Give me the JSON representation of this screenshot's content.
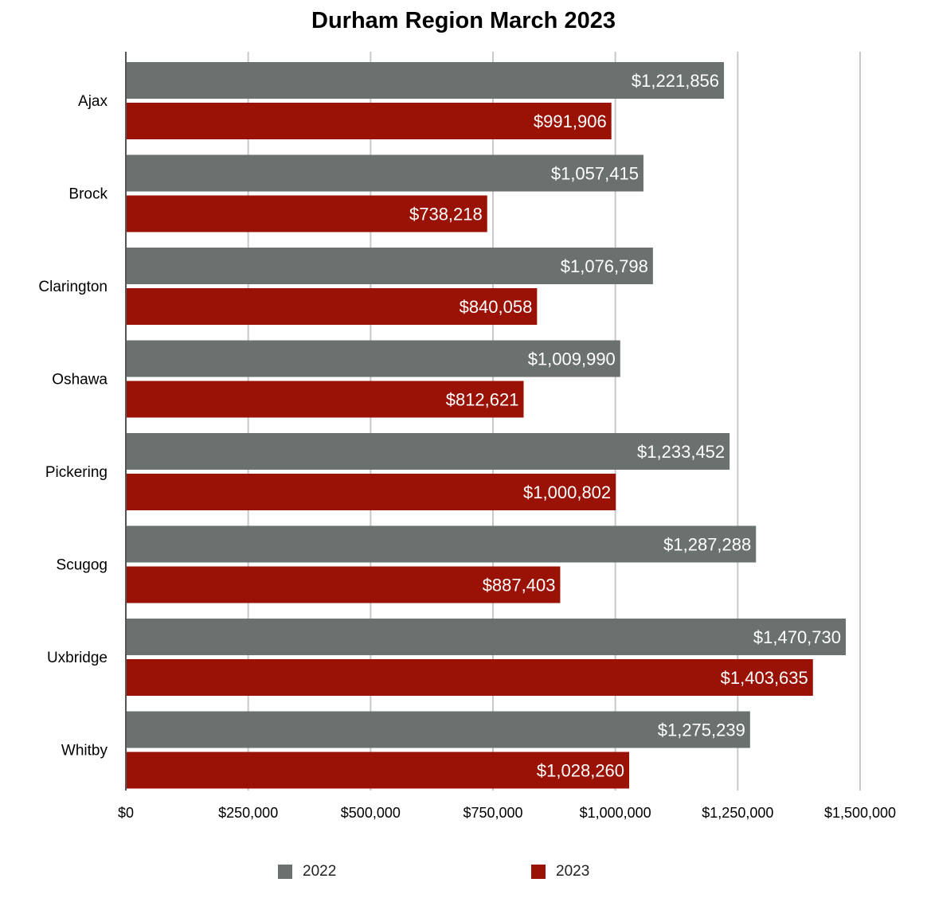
{
  "chart_data": {
    "type": "bar",
    "orientation": "horizontal",
    "title": "Durham Region March 2023",
    "xlabel": "",
    "ylabel": "",
    "xlim": [
      0,
      1500000
    ],
    "grid": true,
    "legend_position": "bottom",
    "categories": [
      "Ajax",
      "Brock",
      "Clarington",
      "Oshawa",
      "Pickering",
      "Scugog",
      "Uxbridge",
      "Whitby"
    ],
    "x_tick_values": [
      0,
      250000,
      500000,
      750000,
      1000000,
      1250000,
      1500000
    ],
    "x_tick_labels": [
      "$0",
      "$250,000",
      "$500,000",
      "$750,000",
      "$1,000,000",
      "$1,250,000",
      "$1,500,000"
    ],
    "series": [
      {
        "name": "2022",
        "color": "#6b716e",
        "values": [
          1221856,
          1057415,
          1076798,
          1009990,
          1233452,
          1287288,
          1470730,
          1275239
        ],
        "labels": [
          "$1,221,856",
          "$1,057,415",
          "$1,076,798",
          "$1,009,990",
          "$1,233,452",
          "$1,287,288",
          "$1,470,730",
          "$1,275,239"
        ]
      },
      {
        "name": "2023",
        "color": "#9a1205",
        "values": [
          991906,
          738218,
          840058,
          812621,
          1000802,
          887403,
          1403635,
          1028260
        ],
        "labels": [
          "$991,906",
          "$738,218",
          "$840,058",
          "$812,621",
          "$1,000,802",
          "$887,403",
          "$1,403,635",
          "$1,028,260"
        ]
      }
    ]
  }
}
